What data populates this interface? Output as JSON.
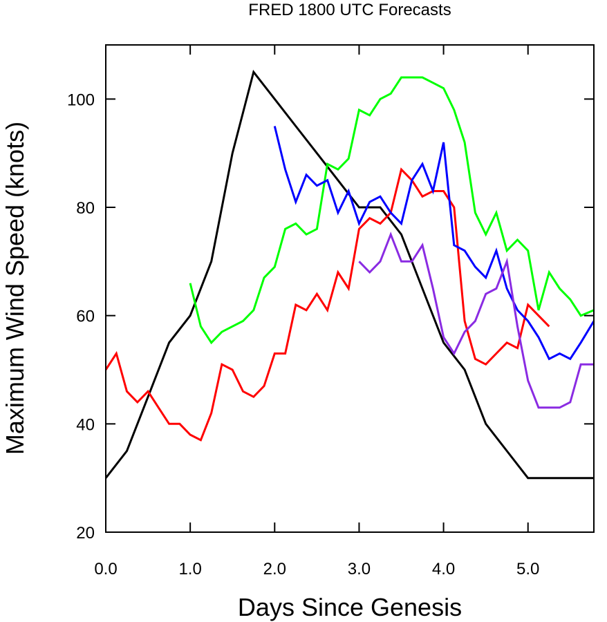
{
  "chart_data": {
    "type": "line",
    "title": "FRED 1800 UTC Forecasts",
    "xlabel": "Days Since Genesis",
    "ylabel": "Maximum Wind Speed (knots)",
    "xlim": [
      0,
      5.78
    ],
    "ylim": [
      20,
      110
    ],
    "xticks": [
      "0.0",
      "1.0",
      "2.0",
      "3.0",
      "4.0",
      "5.0"
    ],
    "yticks": [
      "20",
      "40",
      "60",
      "80",
      "100"
    ],
    "grid": false,
    "legend": "none",
    "series": [
      {
        "color": "#000000",
        "x": [
          0,
          0.25,
          0.5,
          0.75,
          1.0,
          1.25,
          1.5,
          1.75,
          2.0,
          2.25,
          2.5,
          2.75,
          3.0,
          3.25,
          3.5,
          3.75,
          4.0,
          4.25,
          4.5,
          4.75,
          5.0,
          5.25,
          5.5,
          5.78
        ],
        "y": [
          30,
          35,
          45,
          55,
          60,
          70,
          90,
          105,
          100,
          95,
          90,
          85,
          80,
          80,
          75,
          65,
          55,
          50,
          40,
          35,
          30,
          30,
          30,
          30
        ]
      },
      {
        "color": "#ff0000",
        "x": [
          0,
          0.125,
          0.25,
          0.375,
          0.5,
          0.625,
          0.75,
          0.875,
          1.0,
          1.125,
          1.25,
          1.375,
          1.5,
          1.625,
          1.75,
          1.875,
          2.0,
          2.125,
          2.25,
          2.375,
          2.5,
          2.625,
          2.75,
          2.875,
          3.0,
          3.125,
          3.25,
          3.375,
          3.5,
          3.625,
          3.75,
          3.875,
          4.0,
          4.125,
          4.25,
          4.375,
          4.5,
          4.625,
          4.75,
          4.875,
          5.0,
          5.125,
          5.25
        ],
        "y": [
          50,
          53,
          46,
          44,
          46,
          43,
          40,
          40,
          38,
          37,
          42,
          51,
          50,
          46,
          45,
          47,
          53,
          53,
          62,
          61,
          64,
          61,
          68,
          65,
          76,
          78,
          77,
          79,
          87,
          85,
          82,
          83,
          83,
          80,
          59,
          52,
          51,
          53,
          55,
          54,
          62,
          60,
          58
        ]
      },
      {
        "color": "#00ff00",
        "x": [
          1.0,
          1.125,
          1.25,
          1.375,
          1.5,
          1.625,
          1.75,
          1.875,
          2.0,
          2.125,
          2.25,
          2.375,
          2.5,
          2.625,
          2.75,
          2.875,
          3.0,
          3.125,
          3.25,
          3.375,
          3.5,
          3.625,
          3.75,
          3.875,
          4.0,
          4.125,
          4.25,
          4.375,
          4.5,
          4.625,
          4.75,
          4.875,
          5.0,
          5.125,
          5.25,
          5.375,
          5.5,
          5.625,
          5.78
        ],
        "y": [
          66,
          58,
          55,
          57,
          58,
          59,
          61,
          67,
          69,
          76,
          77,
          75,
          76,
          88,
          87,
          89,
          98,
          97,
          100,
          101,
          104,
          104,
          104,
          103,
          102,
          98,
          92,
          79,
          75,
          79,
          72,
          74,
          72,
          61,
          68,
          65,
          63,
          60,
          61
        ]
      },
      {
        "color": "#0000ff",
        "x": [
          2.0,
          2.125,
          2.25,
          2.375,
          2.5,
          2.625,
          2.75,
          2.875,
          3.0,
          3.125,
          3.25,
          3.375,
          3.5,
          3.625,
          3.75,
          3.875,
          4.0,
          4.125,
          4.25,
          4.375,
          4.5,
          4.625,
          4.75,
          4.875,
          5.0,
          5.125,
          5.25,
          5.375,
          5.5,
          5.625,
          5.78
        ],
        "y": [
          95,
          87,
          81,
          86,
          84,
          85,
          79,
          83,
          77,
          81,
          82,
          79,
          77,
          85,
          88,
          83,
          92,
          73,
          72,
          69,
          67,
          72,
          65,
          61,
          59,
          56,
          52,
          53,
          52,
          55,
          59
        ]
      },
      {
        "color": "#8a2be2",
        "x": [
          3.0,
          3.125,
          3.25,
          3.375,
          3.5,
          3.625,
          3.75,
          3.875,
          4.0,
          4.125,
          4.25,
          4.375,
          4.5,
          4.625,
          4.75,
          4.875,
          5.0,
          5.125,
          5.25,
          5.375,
          5.5,
          5.625,
          5.78
        ],
        "y": [
          70,
          68,
          70,
          75,
          70,
          70,
          73,
          65,
          56,
          53,
          57,
          59,
          64,
          65,
          70,
          58,
          48,
          43,
          43,
          43,
          44,
          51,
          51
        ]
      }
    ]
  }
}
